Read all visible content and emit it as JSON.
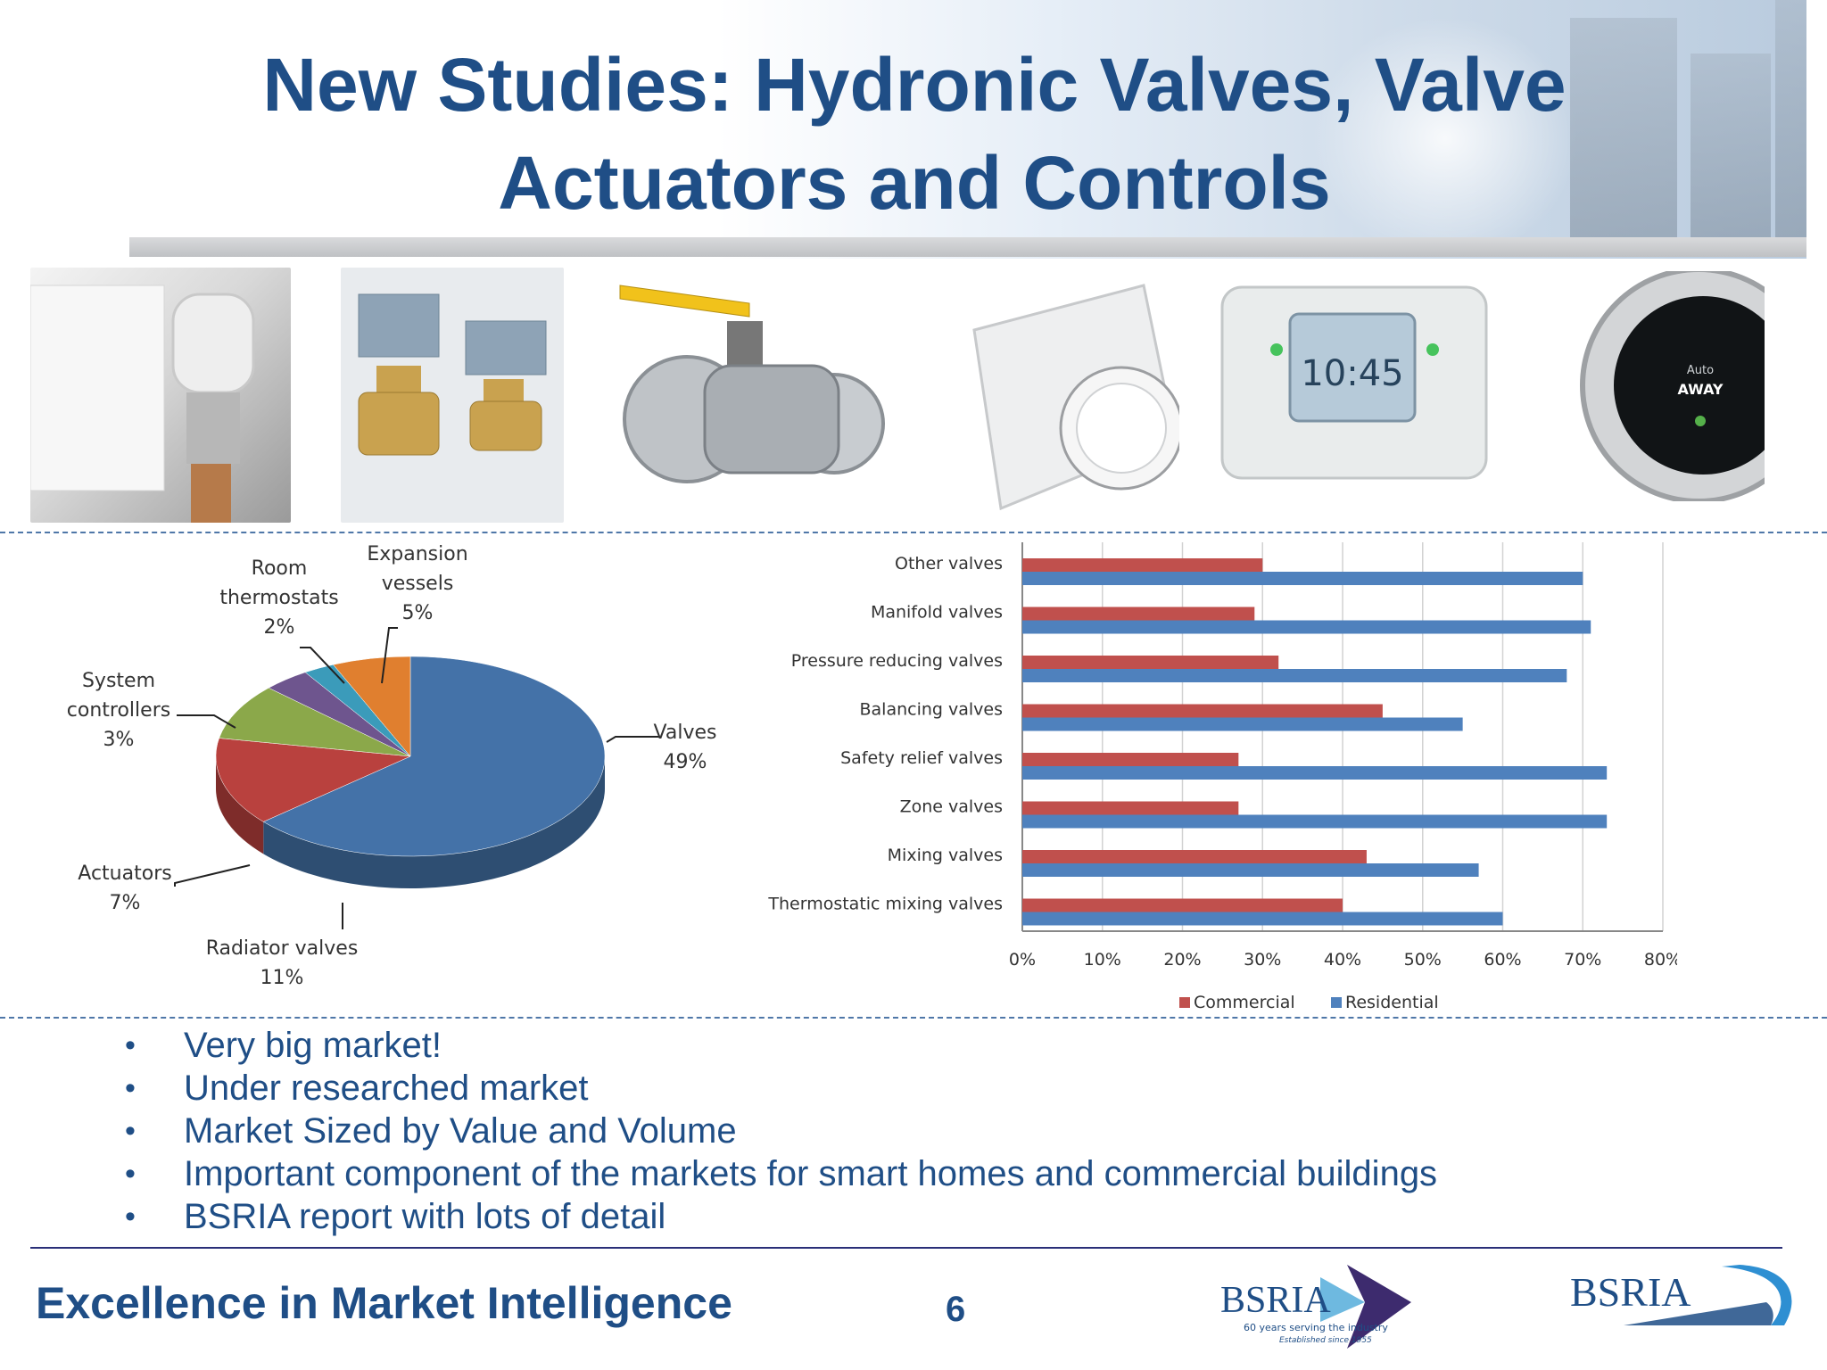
{
  "slide": {
    "title_line1": "New Studies: Hydronic Valves, Valve",
    "title_line2": "Actuators and Controls",
    "page_number": "6",
    "tagline": "Excellence in Market Intelligence",
    "bullets": [
      "Very big market!",
      "Under researched market",
      "Market Sized by Value and Volume",
      "Important component of the markets for smart homes and commercial buildings",
      "BSRIA report with lots of detail"
    ]
  },
  "logos": {
    "logo1_name": "BSRIA",
    "logo1_sub": "60 years serving the industry",
    "logo1_sub2": "Established since 1955",
    "logo2_name": "BSRIA"
  },
  "photos": [
    {
      "name": "radiator-valve-photo",
      "icon": "radiator-valve-icon"
    },
    {
      "name": "valve-actuators-photo",
      "icon": "actuator-icon"
    },
    {
      "name": "ball-valve-photo",
      "icon": "ball-valve-icon"
    },
    {
      "name": "room-thermostat-photo",
      "icon": "dial-thermostat-icon"
    },
    {
      "name": "programmer-photo",
      "icon": "programmer-icon",
      "display": "10:45"
    },
    {
      "name": "smart-thermostat-photo",
      "icon": "smart-thermostat-icon",
      "display_line1": "Auto",
      "display_line2": "AWAY"
    }
  ],
  "chart_data": [
    {
      "type": "pie",
      "slices": [
        {
          "label_line1": "Valves",
          "label_line2": "",
          "label_line3": "",
          "value": 49,
          "value_label": "49%",
          "color": "#4472a8"
        },
        {
          "label_line1": "Radiator valves",
          "label_line2": "",
          "label_line3": "",
          "value": 11,
          "value_label": "11%",
          "color": "#b9413e"
        },
        {
          "label_line1": "Actuators",
          "label_line2": "",
          "label_line3": "",
          "value": 7,
          "value_label": "7%",
          "color": "#8ba84a"
        },
        {
          "label_line1": "System",
          "label_line2": "controllers",
          "label_line3": "",
          "value": 3,
          "value_label": "3%",
          "color": "#6e558e"
        },
        {
          "label_line1": "Room",
          "label_line2": "thermostats",
          "label_line3": "",
          "value": 2,
          "value_label": "2%",
          "color": "#3b9bba"
        },
        {
          "label_line1": "Expansion",
          "label_line2": "vessels",
          "label_line3": "",
          "value": 5,
          "value_label": "5%",
          "color": "#e07f2f"
        }
      ]
    },
    {
      "type": "bar",
      "orientation": "horizontal",
      "categories": [
        "Other valves",
        "Manifold valves",
        "Pressure reducing valves",
        "Balancing valves",
        "Safety relief valves",
        "Zone valves",
        "Mixing valves",
        "Thermostatic mixing valves"
      ],
      "series": [
        {
          "name": "Commercial",
          "color": "#c0504d",
          "values": [
            30,
            29,
            32,
            45,
            27,
            27,
            43,
            40
          ]
        },
        {
          "name": "Residential",
          "color": "#4f81bd",
          "values": [
            70,
            71,
            68,
            55,
            73,
            73,
            57,
            60
          ]
        }
      ],
      "xlim": [
        0,
        80
      ],
      "x_ticks": [
        "0%",
        "10%",
        "20%",
        "30%",
        "40%",
        "50%",
        "60%",
        "70%",
        "80%"
      ],
      "grid": true,
      "legend_position": "bottom"
    }
  ]
}
